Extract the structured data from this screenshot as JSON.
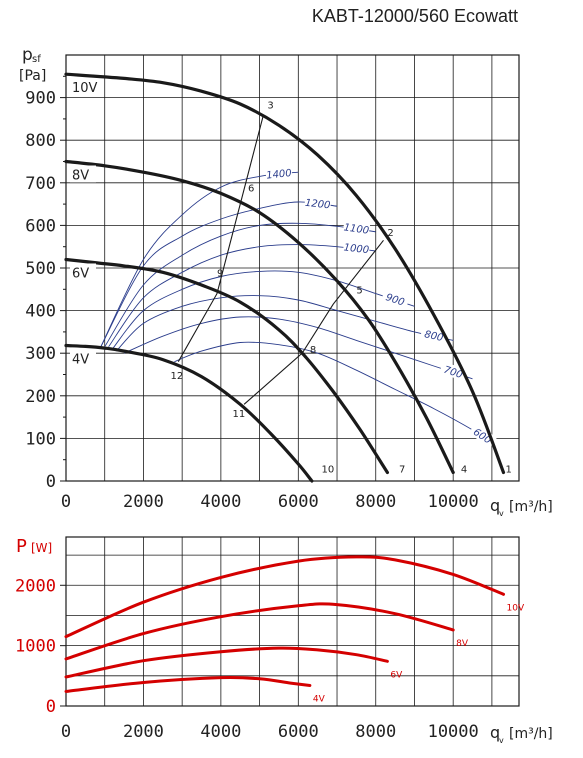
{
  "title": "KABT-12000/560 Ecowatt",
  "colors": {
    "fan_curve": "#1a1a1a",
    "iso_curve": "#2b3d8c",
    "power_curve": "#d40000",
    "grid": "#1a1a1a"
  },
  "chart_data": [
    {
      "type": "line",
      "name": "pressure",
      "ylabel_top": "p",
      "ylabel_sub": "sf",
      "yunit": "[Pa]",
      "xlabel": "q",
      "xlabel_sub": "v",
      "xunit": "[m³/h]",
      "xlim": [
        0,
        11700
      ],
      "ylim": [
        0,
        1000
      ],
      "xticks": [
        "0",
        "2000",
        "4000",
        "6000",
        "8000",
        "10000"
      ],
      "yticks": [
        "0",
        "100",
        "200",
        "300",
        "400",
        "500",
        "600",
        "700",
        "800",
        "900"
      ],
      "series": [
        {
          "name": "10V",
          "points": [
            [
              0,
              955
            ],
            [
              1500,
              945
            ],
            [
              2500,
              935
            ],
            [
              3500,
              915
            ],
            [
              4500,
              885
            ],
            [
              5500,
              835
            ],
            [
              6500,
              765
            ],
            [
              7500,
              670
            ],
            [
              8500,
              545
            ],
            [
              9500,
              390
            ],
            [
              10500,
              210
            ],
            [
              11300,
              20
            ]
          ]
        },
        {
          "name": "8V",
          "points": [
            [
              0,
              750
            ],
            [
              1000,
              740
            ],
            [
              2000,
              725
            ],
            [
              3000,
              705
            ],
            [
              4000,
              675
            ],
            [
              5000,
              630
            ],
            [
              6000,
              560
            ],
            [
              7000,
              470
            ],
            [
              7800,
              380
            ],
            [
              8500,
              280
            ],
            [
              9300,
              150
            ],
            [
              10000,
              20
            ]
          ]
        },
        {
          "name": "6V",
          "points": [
            [
              0,
              520
            ],
            [
              800,
              512
            ],
            [
              1500,
              505
            ],
            [
              2500,
              490
            ],
            [
              3500,
              460
            ],
            [
              4500,
              420
            ],
            [
              5500,
              355
            ],
            [
              6200,
              290
            ],
            [
              6900,
              210
            ],
            [
              7600,
              120
            ],
            [
              8300,
              20
            ]
          ]
        },
        {
          "name": "4V",
          "points": [
            [
              0,
              318
            ],
            [
              500,
              316
            ],
            [
              1000,
              312
            ],
            [
              1500,
              305
            ],
            [
              2500,
              285
            ],
            [
              3500,
              245
            ],
            [
              4500,
              180
            ],
            [
              5300,
              110
            ],
            [
              6000,
              40
            ],
            [
              6350,
              0
            ]
          ]
        }
      ],
      "system_lines": [
        {
          "points": [
            [
              2900,
              280
            ],
            [
              3900,
              440
            ],
            [
              5100,
              860
            ]
          ]
        },
        {
          "points": [
            [
              4600,
              180
            ],
            [
              6100,
              300
            ],
            [
              6900,
              415
            ],
            [
              8200,
              565
            ]
          ]
        }
      ],
      "iso_lines": [
        {
          "label": "1400",
          "points": [
            [
              900,
              315
            ],
            [
              2000,
              520
            ],
            [
              3000,
              625
            ],
            [
              4000,
              690
            ],
            [
              5000,
              715
            ],
            [
              6000,
              725
            ]
          ]
        },
        {
          "label": "1200",
          "points": [
            [
              900,
              315
            ],
            [
              2000,
              505
            ],
            [
              3000,
              575
            ],
            [
              4000,
              615
            ],
            [
              5000,
              640
            ],
            [
              6000,
              655
            ],
            [
              7000,
              645
            ]
          ]
        },
        {
          "label": "1100",
          "points": [
            [
              1000,
              315
            ],
            [
              2000,
              460
            ],
            [
              3000,
              530
            ],
            [
              4000,
              575
            ],
            [
              5000,
              600
            ],
            [
              6000,
              605
            ],
            [
              7000,
              598
            ],
            [
              8000,
              585
            ]
          ]
        },
        {
          "label": "1000",
          "points": [
            [
              1100,
              315
            ],
            [
              2000,
              430
            ],
            [
              3000,
              490
            ],
            [
              4000,
              530
            ],
            [
              5000,
              550
            ],
            [
              6000,
              555
            ],
            [
              7000,
              550
            ],
            [
              8000,
              540
            ]
          ]
        },
        {
          "label": "900",
          "points": [
            [
              1200,
              310
            ],
            [
              2000,
              400
            ],
            [
              3000,
              450
            ],
            [
              4000,
              480
            ],
            [
              5000,
              492
            ],
            [
              6000,
              490
            ],
            [
              7000,
              470
            ],
            [
              8000,
              440
            ],
            [
              9000,
              410
            ]
          ]
        },
        {
          "label": "800",
          "points": [
            [
              1300,
              305
            ],
            [
              2000,
              370
            ],
            [
              3000,
              410
            ],
            [
              4000,
              430
            ],
            [
              5000,
              435
            ],
            [
              6000,
              425
            ],
            [
              7000,
              400
            ],
            [
              8000,
              375
            ],
            [
              9000,
              350
            ],
            [
              10000,
              330
            ]
          ]
        },
        {
          "label": "700",
          "points": [
            [
              1500,
              300
            ],
            [
              2500,
              340
            ],
            [
              3500,
              370
            ],
            [
              4500,
              385
            ],
            [
              5500,
              380
            ],
            [
              6500,
              360
            ],
            [
              7500,
              330
            ],
            [
              8500,
              300
            ],
            [
              9500,
              270
            ],
            [
              10500,
              240
            ]
          ]
        },
        {
          "label": "600",
          "points": [
            [
              2800,
              280
            ],
            [
              3500,
              305
            ],
            [
              4500,
              325
            ],
            [
              5500,
              320
            ],
            [
              6500,
              300
            ],
            [
              7500,
              260
            ],
            [
              8500,
              215
            ],
            [
              9500,
              170
            ],
            [
              10500,
              120
            ],
            [
              11000,
              90
            ]
          ]
        }
      ],
      "point_labels": [
        {
          "label": "1",
          "x": 11350,
          "y": 20
        },
        {
          "label": "2",
          "x": 8300,
          "y": 575
        },
        {
          "label": "3",
          "x": 5200,
          "y": 875
        },
        {
          "label": "4",
          "x": 10200,
          "y": 20
        },
        {
          "label": "5",
          "x": 7500,
          "y": 440
        },
        {
          "label": "6",
          "x": 4700,
          "y": 680
        },
        {
          "label": "7",
          "x": 8600,
          "y": 20
        },
        {
          "label": "8",
          "x": 6300,
          "y": 300
        },
        {
          "label": "9",
          "x": 3900,
          "y": 480
        },
        {
          "label": "10",
          "x": 6600,
          "y": 20
        },
        {
          "label": "11",
          "x": 4300,
          "y": 150
        },
        {
          "label": "12",
          "x": 2700,
          "y": 240
        }
      ]
    },
    {
      "type": "line",
      "name": "power",
      "ylabel": "P",
      "yunit": "[W]",
      "xlabel": "q",
      "xlabel_sub": "v",
      "xunit": "[m³/h]",
      "xlim": [
        0,
        11700
      ],
      "ylim": [
        0,
        2800
      ],
      "xticks": [
        "0",
        "2000",
        "4000",
        "6000",
        "8000",
        "10000"
      ],
      "yticks": [
        "0",
        "1000",
        "2000"
      ],
      "series": [
        {
          "name": "10V",
          "points": [
            [
              0,
              1150
            ],
            [
              2000,
              1720
            ],
            [
              4000,
              2130
            ],
            [
              6000,
              2400
            ],
            [
              7500,
              2470
            ],
            [
              8500,
              2420
            ],
            [
              10000,
              2180
            ],
            [
              11300,
              1850
            ]
          ]
        },
        {
          "name": "8V",
          "points": [
            [
              0,
              780
            ],
            [
              2000,
              1200
            ],
            [
              4000,
              1480
            ],
            [
              6000,
              1660
            ],
            [
              7000,
              1680
            ],
            [
              8500,
              1530
            ],
            [
              10000,
              1260
            ]
          ]
        },
        {
          "name": "6V",
          "points": [
            [
              0,
              480
            ],
            [
              2000,
              750
            ],
            [
              4000,
              900
            ],
            [
              5500,
              960
            ],
            [
              6500,
              930
            ],
            [
              7500,
              850
            ],
            [
              8300,
              740
            ]
          ]
        },
        {
          "name": "4V",
          "points": [
            [
              0,
              240
            ],
            [
              2000,
              390
            ],
            [
              4000,
              470
            ],
            [
              5000,
              450
            ],
            [
              5800,
              380
            ],
            [
              6300,
              340
            ]
          ]
        }
      ]
    }
  ]
}
